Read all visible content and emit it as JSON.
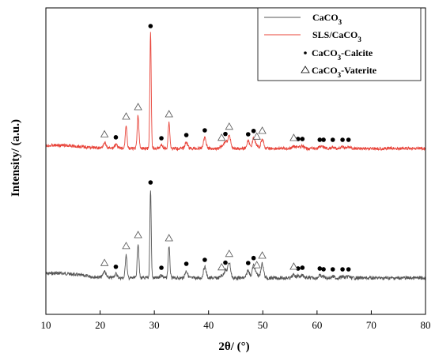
{
  "chart_data": {
    "type": "line",
    "xlabel": "2θ/ (°)",
    "ylabel": "Intensity/ (a.u.)",
    "xlim": [
      10,
      80
    ],
    "x_ticks": [
      10,
      20,
      30,
      40,
      50,
      60,
      70,
      80
    ],
    "y_ticks_labeled": false,
    "grid": false,
    "legend_position": "top-right",
    "legend": [
      {
        "label": "CaCO3",
        "kind": "line",
        "color": "#555555"
      },
      {
        "label": "SLS/CaCO3",
        "kind": "line",
        "color": "#e8443a"
      },
      {
        "label": "CaCO3-Calcite",
        "kind": "marker",
        "marker": "dot"
      },
      {
        "label": "CaCO3-Vaterite",
        "kind": "marker",
        "marker": "triangle"
      }
    ],
    "peak_widths": {
      "narrow": 0.22,
      "broad": 0.35
    },
    "series": [
      {
        "name": "CaCO3",
        "color": "#555555",
        "baseline": 352,
        "noise": 2.2,
        "background_hump": {
          "center": 12,
          "height": 6,
          "width": 6
        },
        "peaks": [
          {
            "x": 20.8,
            "h": 8
          },
          {
            "x": 22.9,
            "h": 5
          },
          {
            "x": 24.8,
            "h": 30
          },
          {
            "x": 27.0,
            "h": 44
          },
          {
            "x": 29.3,
            "h": 112
          },
          {
            "x": 31.3,
            "h": 4
          },
          {
            "x": 32.7,
            "h": 40
          },
          {
            "x": 35.9,
            "h": 9
          },
          {
            "x": 39.3,
            "h": 14
          },
          {
            "x": 42.4,
            "h": 3
          },
          {
            "x": 43.1,
            "h": 10
          },
          {
            "x": 43.8,
            "h": 20
          },
          {
            "x": 47.3,
            "h": 10
          },
          {
            "x": 48.3,
            "h": 16
          },
          {
            "x": 48.9,
            "h": 5
          },
          {
            "x": 49.9,
            "h": 18
          },
          {
            "x": 55.7,
            "h": 4
          },
          {
            "x": 56.5,
            "h": 3
          },
          {
            "x": 57.3,
            "h": 4
          },
          {
            "x": 60.5,
            "h": 3
          },
          {
            "x": 61.2,
            "h": 2
          },
          {
            "x": 62.9,
            "h": 2
          },
          {
            "x": 64.7,
            "h": 2
          },
          {
            "x": 65.8,
            "h": 2
          }
        ],
        "calcite_markers": [
          22.9,
          29.3,
          31.3,
          35.9,
          39.3,
          43.1,
          47.3,
          48.3,
          56.5,
          57.3,
          60.5,
          61.2,
          62.9,
          64.7,
          65.8
        ],
        "vaterite_markers": [
          20.8,
          24.8,
          27.0,
          32.7,
          42.4,
          43.8,
          48.9,
          49.9,
          55.7
        ]
      },
      {
        "name": "SLS/CaCO3",
        "color": "#e8443a",
        "baseline": 188,
        "noise": 2.0,
        "background_hump": {
          "center": 12,
          "height": 4,
          "width": 6
        },
        "peaks": [
          {
            "x": 20.8,
            "h": 7
          },
          {
            "x": 22.9,
            "h": 5
          },
          {
            "x": 24.8,
            "h": 30
          },
          {
            "x": 27.0,
            "h": 42
          },
          {
            "x": 29.3,
            "h": 146
          },
          {
            "x": 31.3,
            "h": 4
          },
          {
            "x": 32.7,
            "h": 33
          },
          {
            "x": 35.9,
            "h": 8
          },
          {
            "x": 39.3,
            "h": 14
          },
          {
            "x": 42.4,
            "h": 3
          },
          {
            "x": 43.1,
            "h": 9
          },
          {
            "x": 43.8,
            "h": 17
          },
          {
            "x": 47.3,
            "h": 9
          },
          {
            "x": 48.3,
            "h": 13
          },
          {
            "x": 48.9,
            "h": 4
          },
          {
            "x": 49.9,
            "h": 12
          },
          {
            "x": 55.7,
            "h": 3
          },
          {
            "x": 56.5,
            "h": 3
          },
          {
            "x": 57.3,
            "h": 3
          },
          {
            "x": 60.5,
            "h": 2
          },
          {
            "x": 61.2,
            "h": 2
          },
          {
            "x": 62.9,
            "h": 2
          },
          {
            "x": 64.7,
            "h": 2
          },
          {
            "x": 65.8,
            "h": 2
          }
        ],
        "calcite_markers": [
          22.9,
          29.3,
          31.3,
          35.9,
          39.3,
          43.1,
          47.3,
          48.3,
          56.5,
          57.3,
          60.5,
          61.2,
          62.9,
          64.7,
          65.8
        ],
        "vaterite_markers": [
          20.8,
          24.8,
          27.0,
          32.7,
          42.4,
          43.8,
          48.9,
          49.9,
          55.7
        ]
      }
    ]
  }
}
